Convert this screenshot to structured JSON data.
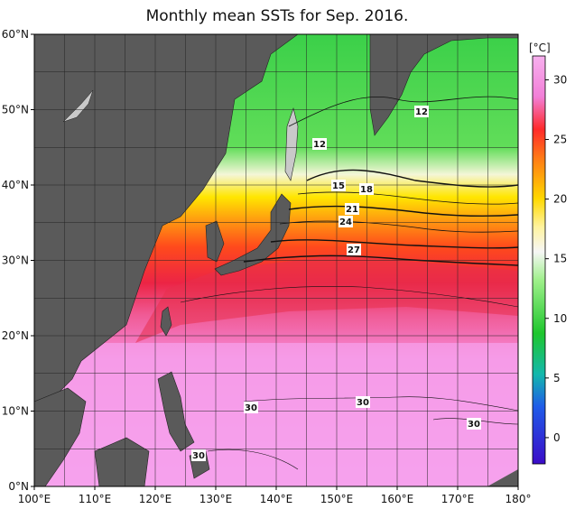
{
  "title": "Monthly mean SSTs for Sep. 2016.",
  "lat_labels": [
    "0°N",
    "10°N",
    "20°N",
    "30°N",
    "40°N",
    "50°N",
    "60°N"
  ],
  "lon_labels": [
    "100°E",
    "110°E",
    "120°E",
    "130°E",
    "140°E",
    "150°E",
    "160°E",
    "170°E",
    "180°"
  ],
  "colorbar": {
    "unit": "[°C]",
    "ticks": [
      "30",
      "25",
      "20",
      "15",
      "10",
      "5",
      "0"
    ]
  },
  "contour_labels": [
    "12",
    "12",
    "15",
    "18",
    "21",
    "24",
    "27",
    "30",
    "30",
    "30",
    "30"
  ],
  "colors": {
    "land": "#5a5a5a",
    "land_light": "#c9c9c9",
    "sea_warm": "#f59ae6",
    "sea_hot": "#e8203a",
    "sea_cold": "#3fd24f"
  }
}
